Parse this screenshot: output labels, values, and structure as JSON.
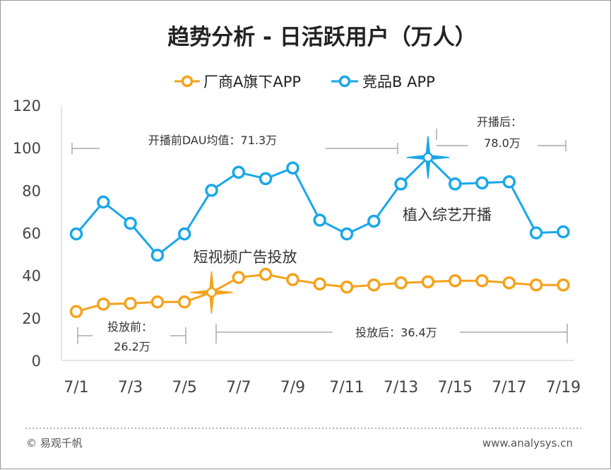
{
  "chart_data": {
    "type": "line",
    "title": "趋势分析 - 日活跃用户（万人）",
    "x": [
      "7/1",
      "7/2",
      "7/3",
      "7/4",
      "7/5",
      "7/6",
      "7/7",
      "7/8",
      "7/9",
      "7/10",
      "7/11",
      "7/12",
      "7/13",
      "7/14",
      "7/15",
      "7/16",
      "7/17",
      "7/18",
      "7/19"
    ],
    "x_tick_labels": [
      "7/1",
      "7/3",
      "7/5",
      "7/7",
      "7/9",
      "7/11",
      "7/13",
      "7/15",
      "7/17",
      "7/19"
    ],
    "y_ticks": [
      "0",
      "20",
      "40",
      "60",
      "80",
      "100",
      "120"
    ],
    "ylim": [
      0,
      120
    ],
    "grid": false,
    "legend_position": "top-center",
    "series": [
      {
        "name": "厂商A旗下APP",
        "color": "#f5a21b",
        "values": [
          23,
          26.5,
          26.8,
          27.5,
          27.5,
          32,
          39,
          40.5,
          38,
          36,
          34.5,
          35.5,
          36.5,
          37,
          37.5,
          37.5,
          36.5,
          35.5,
          35.5
        ]
      },
      {
        "name": "竞品B APP",
        "color": "#1aa7e8",
        "values": [
          59.5,
          74.5,
          64.5,
          49.5,
          59.5,
          80,
          88.5,
          85.5,
          90.5,
          66,
          59.5,
          65.5,
          83,
          95.5,
          83,
          83.5,
          84,
          60,
          60.5
        ]
      }
    ],
    "events": [
      {
        "series": 0,
        "index": 5,
        "label": "短视频广告投放"
      },
      {
        "series": 1,
        "index": 13,
        "label": "植入综艺开播"
      }
    ],
    "annotations": {
      "b_before": "开播前DAU均值：71.3万",
      "b_after_1": "开播后：",
      "b_after_2": "78.0万",
      "a_before_1": "投放前：",
      "a_before_2": "26.2万",
      "a_after": "投放后：36.4万"
    }
  },
  "footer": {
    "left": "© 易观千帆",
    "right": "www.analysys.cn"
  }
}
